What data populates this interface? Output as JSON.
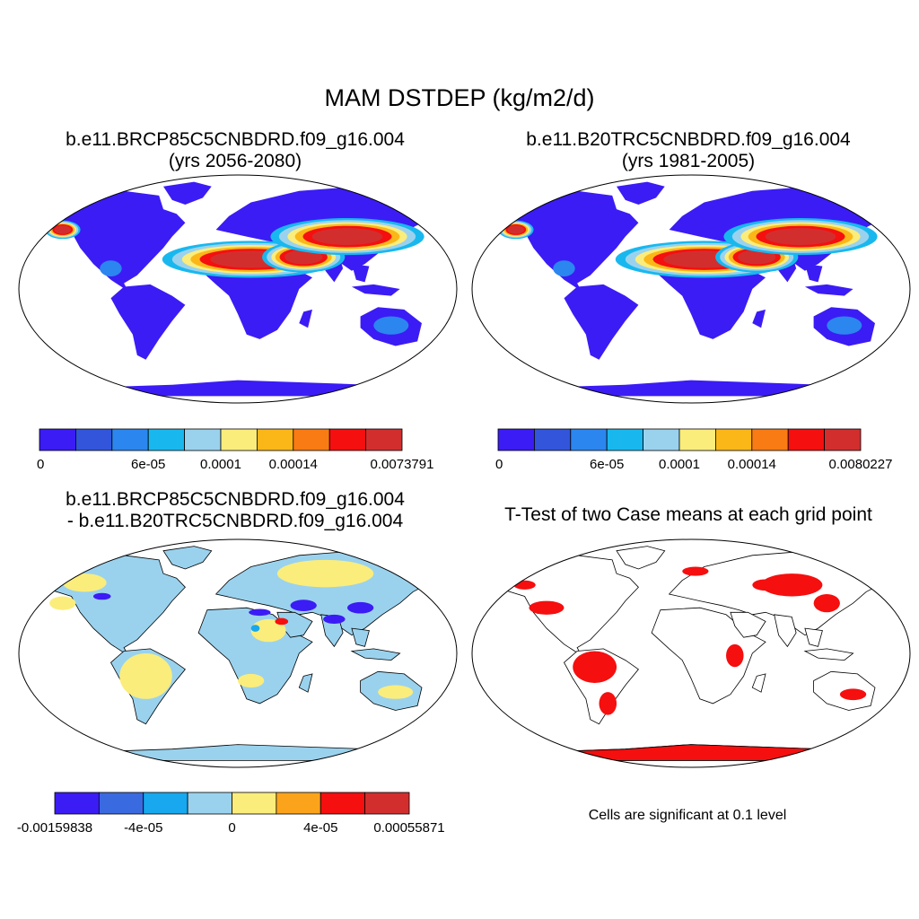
{
  "figure": {
    "title": "MAM DSTDEP (kg/m2/d)"
  },
  "panels": [
    {
      "id": "future",
      "title_line1": "b.e11.BRCP85C5CNBDRD.f09_g16.004",
      "title_line2": "(yrs 2056-2080)"
    },
    {
      "id": "historical",
      "title_line1": "b.e11.B20TRC5CNBDRD.f09_g16.004",
      "title_line2": "(yrs 1981-2005)"
    },
    {
      "id": "difference",
      "title_line1": "b.e11.BRCP85C5CNBDRD.f09_g16.004",
      "title_line2": "- b.e11.B20TRC5CNBDRD.f09_g16.004"
    },
    {
      "id": "ttest",
      "title_line1": "T-Test of two Case means at each grid point",
      "note": "Cells are significant at 0.1 level"
    }
  ],
  "chart_data": [
    {
      "type": "heatmap",
      "title": "b.e11.BRCP85C5CNBDRD.f09_g16.004 (yrs 2056-2080)",
      "variable": "MAM DSTDEP (kg/m2/d)",
      "projection": "Robinson",
      "colorbar": {
        "colors": [
          "#3b1cf5",
          "#3255dc",
          "#2b86f0",
          "#18b8ef",
          "#9ad2ee",
          "#fbed7b",
          "#fbb718",
          "#f97b13",
          "#f50f0f",
          "#d32e2e"
        ],
        "tick_labels": [
          "0",
          "6e-05",
          "0.0001",
          "0.00014",
          "0.0073791"
        ],
        "tick_boundaries": [
          0,
          3,
          5,
          7,
          10
        ]
      },
      "high_regions": [
        "Sahara",
        "Arabian Peninsula",
        "Central Asia deserts",
        "Taklamakan/Gobi"
      ]
    },
    {
      "type": "heatmap",
      "title": "b.e11.B20TRC5CNBDRD.f09_g16.004 (yrs 1981-2005)",
      "variable": "MAM DSTDEP (kg/m2/d)",
      "projection": "Robinson",
      "colorbar": {
        "colors": [
          "#3b1cf5",
          "#3255dc",
          "#2b86f0",
          "#18b8ef",
          "#9ad2ee",
          "#fbed7b",
          "#fbb718",
          "#f97b13",
          "#f50f0f",
          "#d32e2e"
        ],
        "tick_labels": [
          "0",
          "6e-05",
          "0.0001",
          "0.00014",
          "0.0080227"
        ],
        "tick_boundaries": [
          0,
          3,
          5,
          7,
          10
        ]
      },
      "high_regions": [
        "Sahara",
        "Arabian Peninsula",
        "Central Asia deserts",
        "Taklamakan/Gobi"
      ]
    },
    {
      "type": "heatmap",
      "title": "b.e11.BRCP85C5CNBDRD.f09_g16.004 - b.e11.B20TRC5CNBDRD.f09_g16.004",
      "variable": "difference",
      "projection": "Robinson",
      "colorbar": {
        "colors": [
          "#3b1cf5",
          "#3a6ae0",
          "#18a8ef",
          "#9ad2ee",
          "#fbed7b",
          "#fba31a",
          "#f50f0f",
          "#d32e2e"
        ],
        "tick_labels": [
          "-0.00159838",
          "-4e-05",
          "0",
          "4e-05",
          "0.00055871"
        ],
        "tick_boundaries": [
          0,
          2,
          4,
          6,
          8
        ]
      }
    },
    {
      "type": "heatmap",
      "title": "T-Test of two Case means at each grid point",
      "projection": "Robinson",
      "significance_level": 0.1,
      "significant_color": "#f50f0f"
    }
  ]
}
